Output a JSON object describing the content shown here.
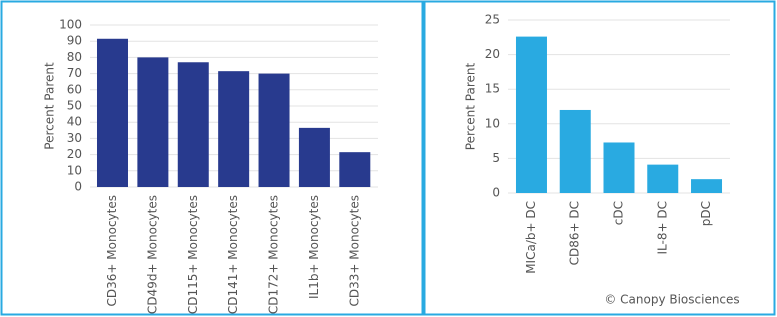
{
  "chart_data": [
    {
      "type": "bar",
      "ylabel": "Percent Parent",
      "categories": [
        "CD36+ Monocytes",
        "CD49d+ Monocytes",
        "CD115+ Monocytes",
        "CD141+ Monocytes",
        "CD172+ Monocytes",
        "IL1b+ Monocytes",
        "CD33+ Monocytes"
      ],
      "values": [
        91.5,
        80,
        77,
        71.5,
        70,
        36.5,
        21.5
      ],
      "color": "#283a8e",
      "ylim": [
        0,
        100
      ],
      "yticks": [
        0,
        10,
        20,
        30,
        40,
        50,
        60,
        70,
        80,
        90,
        100
      ],
      "grid": true
    },
    {
      "type": "bar",
      "ylabel": "Percent Parent",
      "categories": [
        "MICa/b+ DC",
        "CD86+ DC",
        "cDC",
        "IL-8+ DC",
        "pDC"
      ],
      "values": [
        22.6,
        12,
        7.3,
        4.1,
        2
      ],
      "color": "#29aae1",
      "ylim": [
        0,
        25
      ],
      "yticks": [
        0,
        5,
        10,
        15,
        20,
        25
      ],
      "grid": true
    }
  ],
  "footer": "© Canopy Biosciences"
}
